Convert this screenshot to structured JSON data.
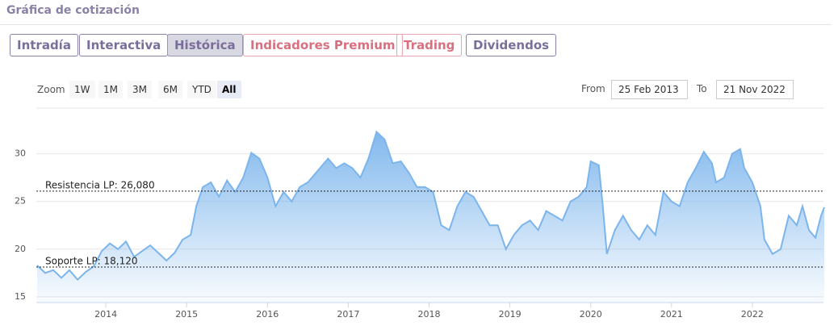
{
  "header": {
    "title": "Gráfica de cotización"
  },
  "tabs": [
    {
      "label": "Intradía",
      "color": "#7a6e9a"
    },
    {
      "label": "Interactiva",
      "color": "#7a6e9a"
    },
    {
      "label": "Histórica",
      "color": "#7a6e9a"
    },
    {
      "label": "Indicadores Premium",
      "color": "#d9707f"
    },
    {
      "label": "Trading",
      "color": "#d9707f"
    },
    {
      "label": "Dividendos",
      "color": "#7a6e9a"
    }
  ],
  "active_tab": 2,
  "zoom": {
    "label": "Zoom",
    "buttons": [
      "1W",
      "1M",
      "3M",
      "6M",
      "YTD",
      "All"
    ],
    "active": 5
  },
  "range": {
    "from_label": "From",
    "from": "25 Feb 2013",
    "to_label": "To",
    "to": "21 Nov 2022"
  },
  "chart_data": {
    "type": "area",
    "color": "#7cb5ec",
    "x": [
      2013.15,
      2013.25,
      2013.35,
      2013.45,
      2013.55,
      2013.65,
      2013.75,
      2013.85,
      2013.95,
      2014.05,
      2014.15,
      2014.25,
      2014.35,
      2014.45,
      2014.55,
      2014.65,
      2014.75,
      2014.85,
      2014.95,
      2015.05,
      2015.12,
      2015.2,
      2015.3,
      2015.4,
      2015.5,
      2015.6,
      2015.7,
      2015.8,
      2015.9,
      2016.0,
      2016.1,
      2016.2,
      2016.3,
      2016.4,
      2016.5,
      2016.6,
      2016.7,
      2016.75,
      2016.85,
      2016.95,
      2017.05,
      2017.15,
      2017.25,
      2017.35,
      2017.45,
      2017.55,
      2017.65,
      2017.75,
      2017.85,
      2017.95,
      2018.05,
      2018.15,
      2018.25,
      2018.35,
      2018.45,
      2018.55,
      2018.65,
      2018.75,
      2018.85,
      2018.95,
      2019.05,
      2019.15,
      2019.25,
      2019.35,
      2019.45,
      2019.55,
      2019.65,
      2019.75,
      2019.85,
      2019.95,
      2020.0,
      2020.1,
      2020.15,
      2020.2,
      2020.3,
      2020.4,
      2020.5,
      2020.6,
      2020.7,
      2020.8,
      2020.9,
      2021.0,
      2021.1,
      2021.2,
      2021.3,
      2021.4,
      2021.5,
      2021.55,
      2021.65,
      2021.75,
      2021.85,
      2021.9,
      2022.0,
      2022.1,
      2022.15,
      2022.25,
      2022.35,
      2022.45,
      2022.55,
      2022.62,
      2022.7,
      2022.78,
      2022.85,
      2022.89
    ],
    "values": [
      18.3,
      17.5,
      17.8,
      17.0,
      17.8,
      16.8,
      17.6,
      18.2,
      19.8,
      20.6,
      20.0,
      20.8,
      19.2,
      19.8,
      20.4,
      19.6,
      18.8,
      19.6,
      21.0,
      21.5,
      24.5,
      26.5,
      27.0,
      25.5,
      27.2,
      26.0,
      27.5,
      30.1,
      29.5,
      27.5,
      24.5,
      26.0,
      25.0,
      26.5,
      27.0,
      28.0,
      29.0,
      29.5,
      28.5,
      29.0,
      28.5,
      27.5,
      29.5,
      32.3,
      31.5,
      29.0,
      29.2,
      28.0,
      26.5,
      26.5,
      26.0,
      22.5,
      22.0,
      24.5,
      26.0,
      25.5,
      24.0,
      22.5,
      22.5,
      20.0,
      21.5,
      22.5,
      23.0,
      22.0,
      24.0,
      23.5,
      23.0,
      25.0,
      25.5,
      26.5,
      29.2,
      28.8,
      24.5,
      19.5,
      22.0,
      23.5,
      22.0,
      21.0,
      22.5,
      21.5,
      26.0,
      25.0,
      24.5,
      27.0,
      28.5,
      30.2,
      29.0,
      27.0,
      27.5,
      30.0,
      30.5,
      28.5,
      27.0,
      24.5,
      21.0,
      19.5,
      20.0,
      23.5,
      22.5,
      24.5,
      22.0,
      21.2,
      23.5,
      24.4
    ],
    "xlim": [
      2013.15,
      2022.89
    ],
    "xticks": [
      2014,
      2015,
      2016,
      2017,
      2018,
      2019,
      2020,
      2021,
      2022
    ],
    "ylim": [
      14.4,
      34.7
    ],
    "yticks": [
      15,
      20,
      25,
      30
    ],
    "grid": true,
    "reference_lines": [
      {
        "value": 26.08,
        "label": "Resistencia LP: 26,080"
      },
      {
        "value": 18.12,
        "label": "Soporte LP: 18,120"
      }
    ]
  }
}
